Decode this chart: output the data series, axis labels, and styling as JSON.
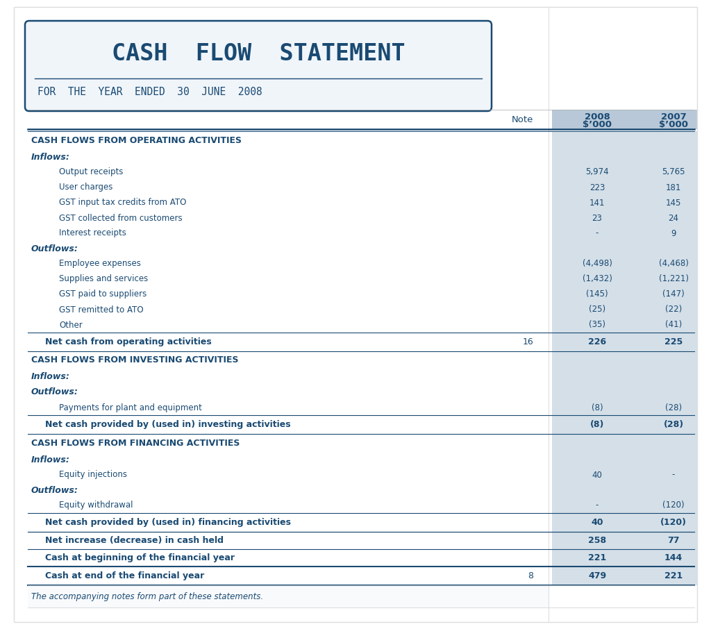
{
  "title_line1": "CASH  FLOW  STATEMENT",
  "title_line2": "FOR  THE  YEAR  ENDED  30  JUNE  2008",
  "footer": "The accompanying notes form part of these statements.",
  "bg_color": "#ffffff",
  "header_col_bg": "#b8c8d8",
  "stripe_col_bg": "#d4dfe8",
  "text_color": "#1a4a72",
  "rows": [
    {
      "label": "CASH FLOWS FROM OPERATING ACTIVITIES",
      "note": "",
      "val2008": "",
      "val2007": "",
      "type": "section"
    },
    {
      "label": "Inflows:",
      "note": "",
      "val2008": "",
      "val2007": "",
      "type": "subsection"
    },
    {
      "label": "Output receipts",
      "note": "",
      "val2008": "5,974",
      "val2007": "5,765",
      "type": "item"
    },
    {
      "label": "User charges",
      "note": "",
      "val2008": "223",
      "val2007": "181",
      "type": "item"
    },
    {
      "label": "GST input tax credits from ATO",
      "note": "",
      "val2008": "141",
      "val2007": "145",
      "type": "item"
    },
    {
      "label": "GST collected from customers",
      "note": "",
      "val2008": "23",
      "val2007": "24",
      "type": "item"
    },
    {
      "label": "Interest receipts",
      "note": "",
      "val2008": "-",
      "val2007": "9",
      "type": "item"
    },
    {
      "label": "Outflows:",
      "note": "",
      "val2008": "",
      "val2007": "",
      "type": "subsection"
    },
    {
      "label": "Employee expenses",
      "note": "",
      "val2008": "(4,498)",
      "val2007": "(4,468)",
      "type": "item"
    },
    {
      "label": "Supplies and services",
      "note": "",
      "val2008": "(1,432)",
      "val2007": "(1,221)",
      "type": "item"
    },
    {
      "label": "GST paid to suppliers",
      "note": "",
      "val2008": "(145)",
      "val2007": "(147)",
      "type": "item"
    },
    {
      "label": "GST remitted to ATO",
      "note": "",
      "val2008": "(25)",
      "val2007": "(22)",
      "type": "item"
    },
    {
      "label": "Other",
      "note": "",
      "val2008": "(35)",
      "val2007": "(41)",
      "type": "item"
    },
    {
      "label": "Net cash from operating activities",
      "note": "16",
      "val2008": "226",
      "val2007": "225",
      "type": "total"
    },
    {
      "label": "CASH FLOWS FROM INVESTING ACTIVITIES",
      "note": "",
      "val2008": "",
      "val2007": "",
      "type": "section"
    },
    {
      "label": "Inflows:",
      "note": "",
      "val2008": "",
      "val2007": "",
      "type": "subsection"
    },
    {
      "label": "Outflows:",
      "note": "",
      "val2008": "",
      "val2007": "",
      "type": "subsection"
    },
    {
      "label": "Payments for plant and equipment",
      "note": "",
      "val2008": "(8)",
      "val2007": "(28)",
      "type": "item"
    },
    {
      "label": "Net cash provided by (used in) investing activities",
      "note": "",
      "val2008": "(8)",
      "val2007": "(28)",
      "type": "total"
    },
    {
      "label": "CASH FLOWS FROM FINANCING ACTIVITIES",
      "note": "",
      "val2008": "",
      "val2007": "",
      "type": "section"
    },
    {
      "label": "Inflows:",
      "note": "",
      "val2008": "",
      "val2007": "",
      "type": "subsection"
    },
    {
      "label": "Equity injections",
      "note": "",
      "val2008": "40",
      "val2007": "-",
      "type": "item"
    },
    {
      "label": "Outflows:",
      "note": "",
      "val2008": "",
      "val2007": "",
      "type": "subsection"
    },
    {
      "label": "Equity withdrawal",
      "note": "",
      "val2008": "-",
      "val2007": "(120)",
      "type": "item"
    },
    {
      "label": "Net cash provided by (used in) financing activities",
      "note": "",
      "val2008": "40",
      "val2007": "(120)",
      "type": "total"
    },
    {
      "label": "Net increase (decrease) in cash held",
      "note": "",
      "val2008": "258",
      "val2007": "77",
      "type": "summary"
    },
    {
      "label": "Cash at beginning of the financial year",
      "note": "",
      "val2008": "221",
      "val2007": "144",
      "type": "summary"
    },
    {
      "label": "Cash at end of the financial year",
      "note": "8",
      "val2008": "479",
      "val2007": "221",
      "type": "final"
    }
  ]
}
